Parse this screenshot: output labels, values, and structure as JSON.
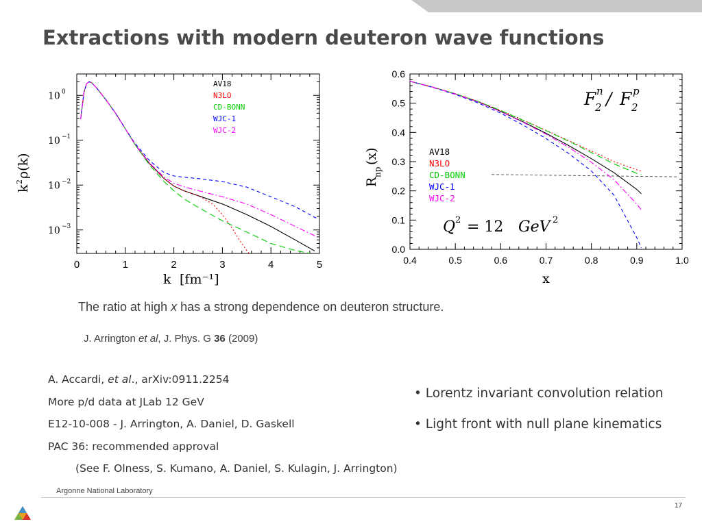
{
  "slide": {
    "title": "Extractions with modern deuteron wave functions",
    "caption_pre": "The ratio at high ",
    "caption_var": "x",
    "caption_post": " has a strong dependence on deuteron structure.",
    "ref_pre": "J.  Arrington ",
    "ref_etal": "et al",
    "ref_mid": ", J. Phys. G ",
    "ref_vol": "36",
    "ref_post": " (2009)",
    "notes": {
      "line1_pre": "A.  Accardi, ",
      "line1_etal": "et al",
      "line1_post": "., arXiv:0911.2254",
      "line2": "More p/d data at JLab 12 GeV",
      "line3": "E12-10-008 - J. Arrington, A. Daniel, D. Gaskell",
      "line4": "PAC 36: recommended approval",
      "line5": "(See F. Olness, S. Kumano, A. Daniel, S. Kulagin, J. Arrington)"
    },
    "bullets": [
      "• Lorentz invariant convolution relation",
      "• Light front with null plane kinematics"
    ],
    "footer": "Argonne National Laboratory",
    "page_number": "17",
    "colors": {
      "title": "#4a4a4a",
      "topbar_gray": "#c8c8c8",
      "AV18": "#000000",
      "N3LO": "#ff0000",
      "CD-BONN": "#00cc00",
      "WJC-1": "#0000ff",
      "WJC-2": "#ff00ff"
    }
  },
  "chart_data": [
    {
      "type": "line",
      "xlabel_main": "k",
      "xlabel_unit": "[fm⁻¹]",
      "ylabel_k": "k",
      "ylabel_sq": "2",
      "ylabel_rho": "ρ(k)",
      "xlim": [
        0,
        5
      ],
      "ylim": [
        0.0003,
        3
      ],
      "y_scale": "log",
      "x_ticks": [
        "0",
        "1",
        "2",
        "3",
        "4",
        "5"
      ],
      "y_tick_values": [
        1,
        0.1,
        0.01,
        0.001
      ],
      "y_tick_base": "10",
      "y_tick_exps": [
        "0",
        "−1",
        "−2",
        "−3"
      ],
      "legend_position": "top-right",
      "series": [
        {
          "name": "AV18",
          "color": "#000000",
          "dash": "",
          "x": [
            0.08,
            0.15,
            0.2,
            0.25,
            0.3,
            0.4,
            0.6,
            0.8,
            1.0,
            1.2,
            1.5,
            1.8,
            2.0,
            2.2,
            2.5,
            3.0,
            3.5,
            4.0,
            4.5,
            4.9
          ],
          "y": [
            0.3,
            1.2,
            1.8,
            2.0,
            1.95,
            1.5,
            0.8,
            0.4,
            0.18,
            0.08,
            0.03,
            0.014,
            0.0095,
            0.0075,
            0.0058,
            0.0038,
            0.0022,
            0.0012,
            0.0006,
            0.00034
          ]
        },
        {
          "name": "N3LO",
          "color": "#ff0000",
          "dash": "2,3",
          "x": [
            0.08,
            0.15,
            0.2,
            0.25,
            0.3,
            0.4,
            0.6,
            0.8,
            1.0,
            1.2,
            1.5,
            1.8,
            2.0,
            2.2,
            2.5,
            2.8,
            3.0,
            3.2,
            3.35,
            3.5,
            3.55
          ],
          "y": [
            0.3,
            1.2,
            1.8,
            2.0,
            1.95,
            1.5,
            0.8,
            0.4,
            0.18,
            0.08,
            0.03,
            0.014,
            0.0095,
            0.0075,
            0.0058,
            0.0038,
            0.0022,
            0.0011,
            0.0006,
            0.00035,
            0.0003
          ]
        },
        {
          "name": "CD-BONN",
          "color": "#00cc00",
          "dash": "9,5",
          "x": [
            0.08,
            0.15,
            0.2,
            0.25,
            0.3,
            0.4,
            0.6,
            0.8,
            1.0,
            1.2,
            1.5,
            1.8,
            2.0,
            2.2,
            2.5,
            3.0,
            3.5,
            4.0,
            4.5,
            4.8
          ],
          "y": [
            0.3,
            1.2,
            1.8,
            2.0,
            1.95,
            1.5,
            0.8,
            0.4,
            0.18,
            0.08,
            0.028,
            0.012,
            0.0075,
            0.005,
            0.0032,
            0.0016,
            0.0009,
            0.0005,
            0.00035,
            0.0003
          ]
        },
        {
          "name": "WJC-1",
          "color": "#0000ff",
          "dash": "5,4",
          "x": [
            0.08,
            0.15,
            0.2,
            0.25,
            0.3,
            0.4,
            0.6,
            0.8,
            1.0,
            1.2,
            1.5,
            1.8,
            2.0,
            2.2,
            2.5,
            3.0,
            3.5,
            4.0,
            4.5,
            4.95
          ],
          "y": [
            0.3,
            1.2,
            1.8,
            2.0,
            1.95,
            1.5,
            0.8,
            0.4,
            0.18,
            0.085,
            0.035,
            0.019,
            0.016,
            0.015,
            0.014,
            0.012,
            0.009,
            0.0055,
            0.0033,
            0.0018
          ]
        },
        {
          "name": "WJC-2",
          "color": "#ff00ff",
          "dash": "8,3,2,3",
          "x": [
            0.08,
            0.15,
            0.2,
            0.25,
            0.3,
            0.4,
            0.6,
            0.8,
            1.0,
            1.2,
            1.5,
            1.8,
            2.0,
            2.2,
            2.5,
            3.0,
            3.5,
            4.0,
            4.5,
            4.95
          ],
          "y": [
            0.3,
            1.2,
            1.8,
            2.0,
            1.95,
            1.5,
            0.8,
            0.4,
            0.18,
            0.082,
            0.031,
            0.015,
            0.011,
            0.0092,
            0.0075,
            0.0055,
            0.0038,
            0.0022,
            0.0012,
            0.0007
          ]
        }
      ]
    },
    {
      "type": "line",
      "xlabel": "x",
      "ylabel_R": "R",
      "ylabel_sub": "np",
      "ylabel_arg": "(x)",
      "title_F": "F",
      "title_n": "n",
      "title_2a": "2",
      "title_slash": "/",
      "title_p": "p",
      "title_2b": "2",
      "q2_Q": "Q",
      "q2_exp": "2",
      "q2_eq": " = 12 ",
      "q2_unit": "GeV",
      "q2_unit_exp": "2",
      "xlim": [
        0.4,
        1.0
      ],
      "ylim": [
        0.0,
        0.6
      ],
      "x_ticks": [
        "0.4",
        "0.5",
        "0.6",
        "0.7",
        "0.8",
        "0.9",
        "1.0"
      ],
      "y_ticks": [
        "0.0",
        "0.1",
        "0.2",
        "0.3",
        "0.4",
        "0.5",
        "0.6"
      ],
      "reference_line_y": 0.25,
      "legend_position": "middle-left",
      "series": [
        {
          "name": "AV18",
          "color": "#000000",
          "dash": "",
          "x": [
            0.4,
            0.45,
            0.5,
            0.55,
            0.6,
            0.65,
            0.7,
            0.75,
            0.8,
            0.85,
            0.9,
            0.91
          ],
          "y": [
            0.575,
            0.555,
            0.532,
            0.505,
            0.472,
            0.436,
            0.397,
            0.355,
            0.31,
            0.262,
            0.205,
            0.19
          ]
        },
        {
          "name": "N3LO",
          "color": "#ff0000",
          "dash": "2,3",
          "x": [
            0.4,
            0.45,
            0.5,
            0.55,
            0.6,
            0.65,
            0.7,
            0.75,
            0.8,
            0.85,
            0.9,
            0.91
          ],
          "y": [
            0.575,
            0.555,
            0.532,
            0.506,
            0.475,
            0.442,
            0.407,
            0.372,
            0.336,
            0.3,
            0.272,
            0.268
          ]
        },
        {
          "name": "CD-BONN",
          "color": "#00cc00",
          "dash": "9,5",
          "x": [
            0.4,
            0.45,
            0.5,
            0.55,
            0.6,
            0.65,
            0.7,
            0.75,
            0.8,
            0.85,
            0.9,
            0.91
          ],
          "y": [
            0.575,
            0.555,
            0.532,
            0.506,
            0.475,
            0.441,
            0.406,
            0.37,
            0.331,
            0.292,
            0.26,
            0.255
          ]
        },
        {
          "name": "WJC-1",
          "color": "#0000ff",
          "dash": "5,4",
          "x": [
            0.4,
            0.45,
            0.5,
            0.55,
            0.6,
            0.65,
            0.7,
            0.75,
            0.8,
            0.85,
            0.9,
            0.91
          ],
          "y": [
            0.575,
            0.554,
            0.53,
            0.501,
            0.466,
            0.425,
            0.379,
            0.328,
            0.268,
            0.185,
            0.04,
            0.005
          ]
        },
        {
          "name": "WJC-2",
          "color": "#ff00ff",
          "dash": "8,3,2,3",
          "x": [
            0.4,
            0.45,
            0.5,
            0.55,
            0.6,
            0.65,
            0.7,
            0.75,
            0.8,
            0.85,
            0.9,
            0.91
          ],
          "y": [
            0.575,
            0.555,
            0.531,
            0.504,
            0.471,
            0.434,
            0.394,
            0.349,
            0.298,
            0.238,
            0.155,
            0.135
          ]
        }
      ]
    }
  ]
}
